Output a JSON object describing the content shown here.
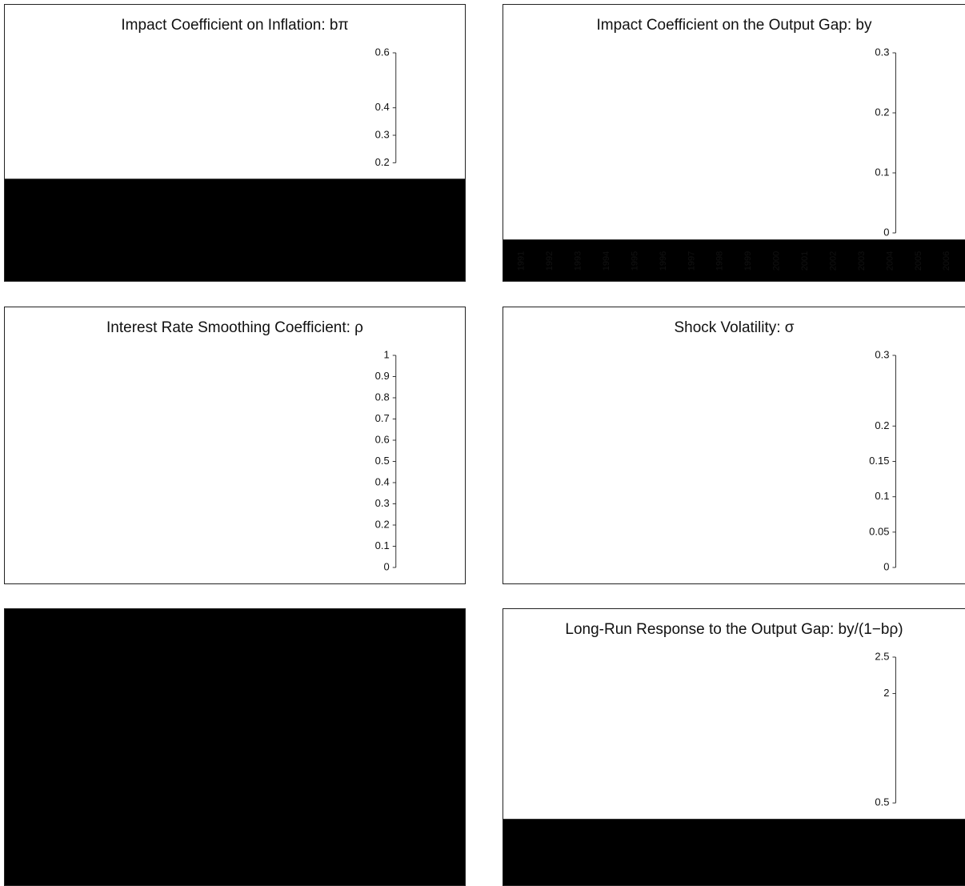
{
  "panels": [
    {
      "title": "Impact Coefficient on Inflation: bπ",
      "ylim": [
        0.2,
        0.6
      ],
      "yticks": [
        0.2,
        0.3,
        0.4,
        0.6
      ]
    },
    {
      "title": "Impact Coefficient on the Output Gap: by",
      "ylim": [
        0,
        0.3
      ],
      "yticks": [
        0,
        0.1,
        0.2,
        0.3
      ],
      "categories": [
        "1991",
        "1992",
        "1993",
        "1994",
        "1995",
        "1996",
        "1997",
        "1998",
        "1999",
        "2000",
        "2001",
        "2002",
        "2003",
        "2004",
        "2005",
        "2006"
      ]
    },
    {
      "title": "Interest Rate Smoothing Coefficient: ρ",
      "ylim": [
        0,
        1
      ],
      "yticks": [
        0,
        0.1,
        0.2,
        0.3,
        0.4,
        0.5,
        0.6,
        0.7,
        0.8,
        0.9,
        1
      ]
    },
    {
      "title": "Shock Volatility: σ",
      "ylim": [
        0,
        0.3
      ],
      "yticks": [
        0,
        0.05,
        0.1,
        0.15,
        0.2,
        0.3
      ]
    },
    {},
    {
      "title": "Long-Run Response to the Output Gap: by/(1−bρ)",
      "ylim": [
        0.5,
        2.5
      ],
      "yticks": [
        0.5,
        2,
        2.5
      ]
    }
  ]
}
